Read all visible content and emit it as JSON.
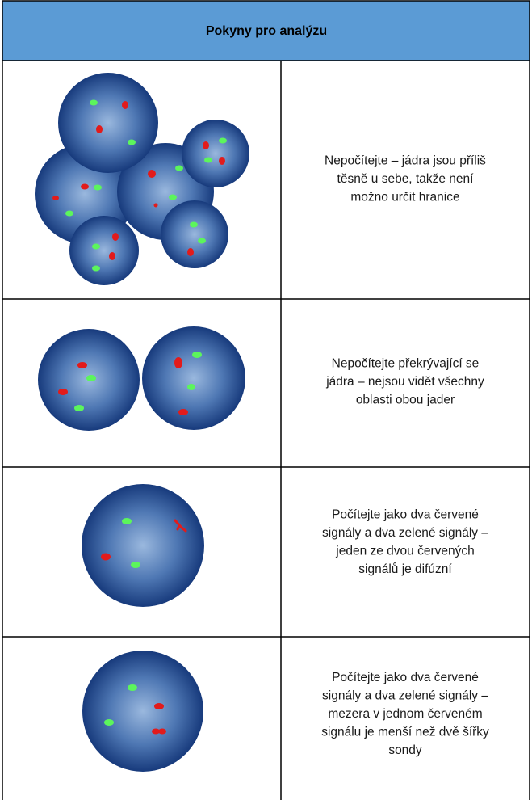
{
  "header": {
    "title": "Pokyny pro analýzu"
  },
  "rows": [
    {
      "lines": [
        "Nepočítejte – jádra jsou příliš",
        "těsně u sebe, takže není",
        "možno určit hranice"
      ]
    },
    {
      "lines": [
        "Nepočítejte překrývající se",
        "jádra – nejsou vidět všechny",
        "oblasti obou jader"
      ]
    },
    {
      "lines": [
        "Počítejte jako dva červené",
        "signály a dva zelené signály –",
        "jeden ze dvou červených",
        "signálů je difúzní"
      ]
    },
    {
      "lines": [
        "Počítejte jako dva červené",
        "signály a dva zelené signály –",
        "mezera v jednom červeném",
        "signálu je menší než dvě šířky",
        "sondy"
      ]
    }
  ]
}
